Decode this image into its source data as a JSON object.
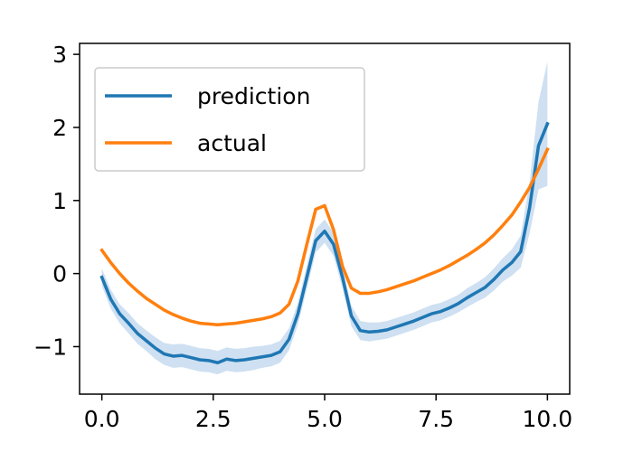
{
  "chart_data": {
    "type": "line",
    "title": "",
    "xlabel": "",
    "ylabel": "",
    "xlim": [
      -0.5,
      10.5
    ],
    "ylim": [
      -1.65,
      3.15
    ],
    "x_ticks": [
      0.0,
      2.5,
      5.0,
      7.5,
      10.0
    ],
    "x_tick_labels": [
      "0.0",
      "2.5",
      "5.0",
      "7.5",
      "10.0"
    ],
    "y_ticks": [
      -1,
      0,
      1,
      2,
      3
    ],
    "y_tick_labels": [
      "−1",
      "0",
      "1",
      "2",
      "3"
    ],
    "grid": false,
    "legend_position": "upper-left",
    "series": [
      {
        "name": "prediction",
        "color": "#1f77b4",
        "band_color": "#c6dbef",
        "x": [
          0,
          0.2,
          0.4,
          0.6,
          0.8,
          1.0,
          1.2,
          1.4,
          1.6,
          1.8,
          2.0,
          2.2,
          2.4,
          2.6,
          2.8,
          3.0,
          3.2,
          3.4,
          3.6,
          3.8,
          4.0,
          4.2,
          4.4,
          4.6,
          4.8,
          5.0,
          5.2,
          5.4,
          5.6,
          5.8,
          6.0,
          6.2,
          6.4,
          6.6,
          6.8,
          7.0,
          7.2,
          7.4,
          7.6,
          7.8,
          8.0,
          8.2,
          8.4,
          8.6,
          8.8,
          9.0,
          9.2,
          9.4,
          9.6,
          9.8,
          10.0
        ],
        "values": [
          -0.05,
          -0.35,
          -0.55,
          -0.68,
          -0.82,
          -0.92,
          -1.02,
          -1.1,
          -1.13,
          -1.12,
          -1.15,
          -1.18,
          -1.19,
          -1.22,
          -1.17,
          -1.19,
          -1.18,
          -1.16,
          -1.14,
          -1.12,
          -1.07,
          -0.9,
          -0.55,
          -0.05,
          0.45,
          0.58,
          0.4,
          -0.05,
          -0.58,
          -0.78,
          -0.8,
          -0.79,
          -0.77,
          -0.73,
          -0.69,
          -0.65,
          -0.6,
          -0.55,
          -0.52,
          -0.47,
          -0.41,
          -0.33,
          -0.26,
          -0.19,
          -0.08,
          0.05,
          0.15,
          0.3,
          0.9,
          1.75,
          2.05
        ],
        "band_halfwidth": [
          0.12,
          0.13,
          0.13,
          0.14,
          0.14,
          0.14,
          0.15,
          0.15,
          0.16,
          0.16,
          0.16,
          0.16,
          0.16,
          0.16,
          0.16,
          0.16,
          0.16,
          0.16,
          0.15,
          0.15,
          0.15,
          0.15,
          0.15,
          0.16,
          0.16,
          0.16,
          0.16,
          0.15,
          0.14,
          0.13,
          0.13,
          0.12,
          0.12,
          0.12,
          0.12,
          0.12,
          0.12,
          0.12,
          0.12,
          0.12,
          0.12,
          0.13,
          0.13,
          0.14,
          0.15,
          0.16,
          0.18,
          0.22,
          0.35,
          0.6,
          0.85
        ]
      },
      {
        "name": "actual",
        "color": "#ff7f0e",
        "x": [
          0,
          0.2,
          0.4,
          0.6,
          0.8,
          1.0,
          1.2,
          1.4,
          1.6,
          1.8,
          2.0,
          2.2,
          2.4,
          2.6,
          2.8,
          3.0,
          3.2,
          3.4,
          3.6,
          3.8,
          4.0,
          4.2,
          4.4,
          4.6,
          4.8,
          5.0,
          5.2,
          5.4,
          5.6,
          5.8,
          6.0,
          6.2,
          6.4,
          6.6,
          6.8,
          7.0,
          7.2,
          7.4,
          7.6,
          7.8,
          8.0,
          8.2,
          8.4,
          8.6,
          8.8,
          9.0,
          9.2,
          9.4,
          9.6,
          9.8,
          10.0
        ],
        "values": [
          0.32,
          0.15,
          0.0,
          -0.13,
          -0.24,
          -0.34,
          -0.42,
          -0.5,
          -0.56,
          -0.61,
          -0.65,
          -0.68,
          -0.69,
          -0.7,
          -0.69,
          -0.68,
          -0.66,
          -0.64,
          -0.62,
          -0.59,
          -0.54,
          -0.42,
          -0.1,
          0.4,
          0.88,
          0.93,
          0.6,
          0.1,
          -0.2,
          -0.27,
          -0.27,
          -0.25,
          -0.22,
          -0.18,
          -0.14,
          -0.1,
          -0.05,
          0.0,
          0.05,
          0.11,
          0.18,
          0.25,
          0.33,
          0.42,
          0.53,
          0.66,
          0.8,
          0.98,
          1.18,
          1.43,
          1.7
        ]
      }
    ]
  }
}
